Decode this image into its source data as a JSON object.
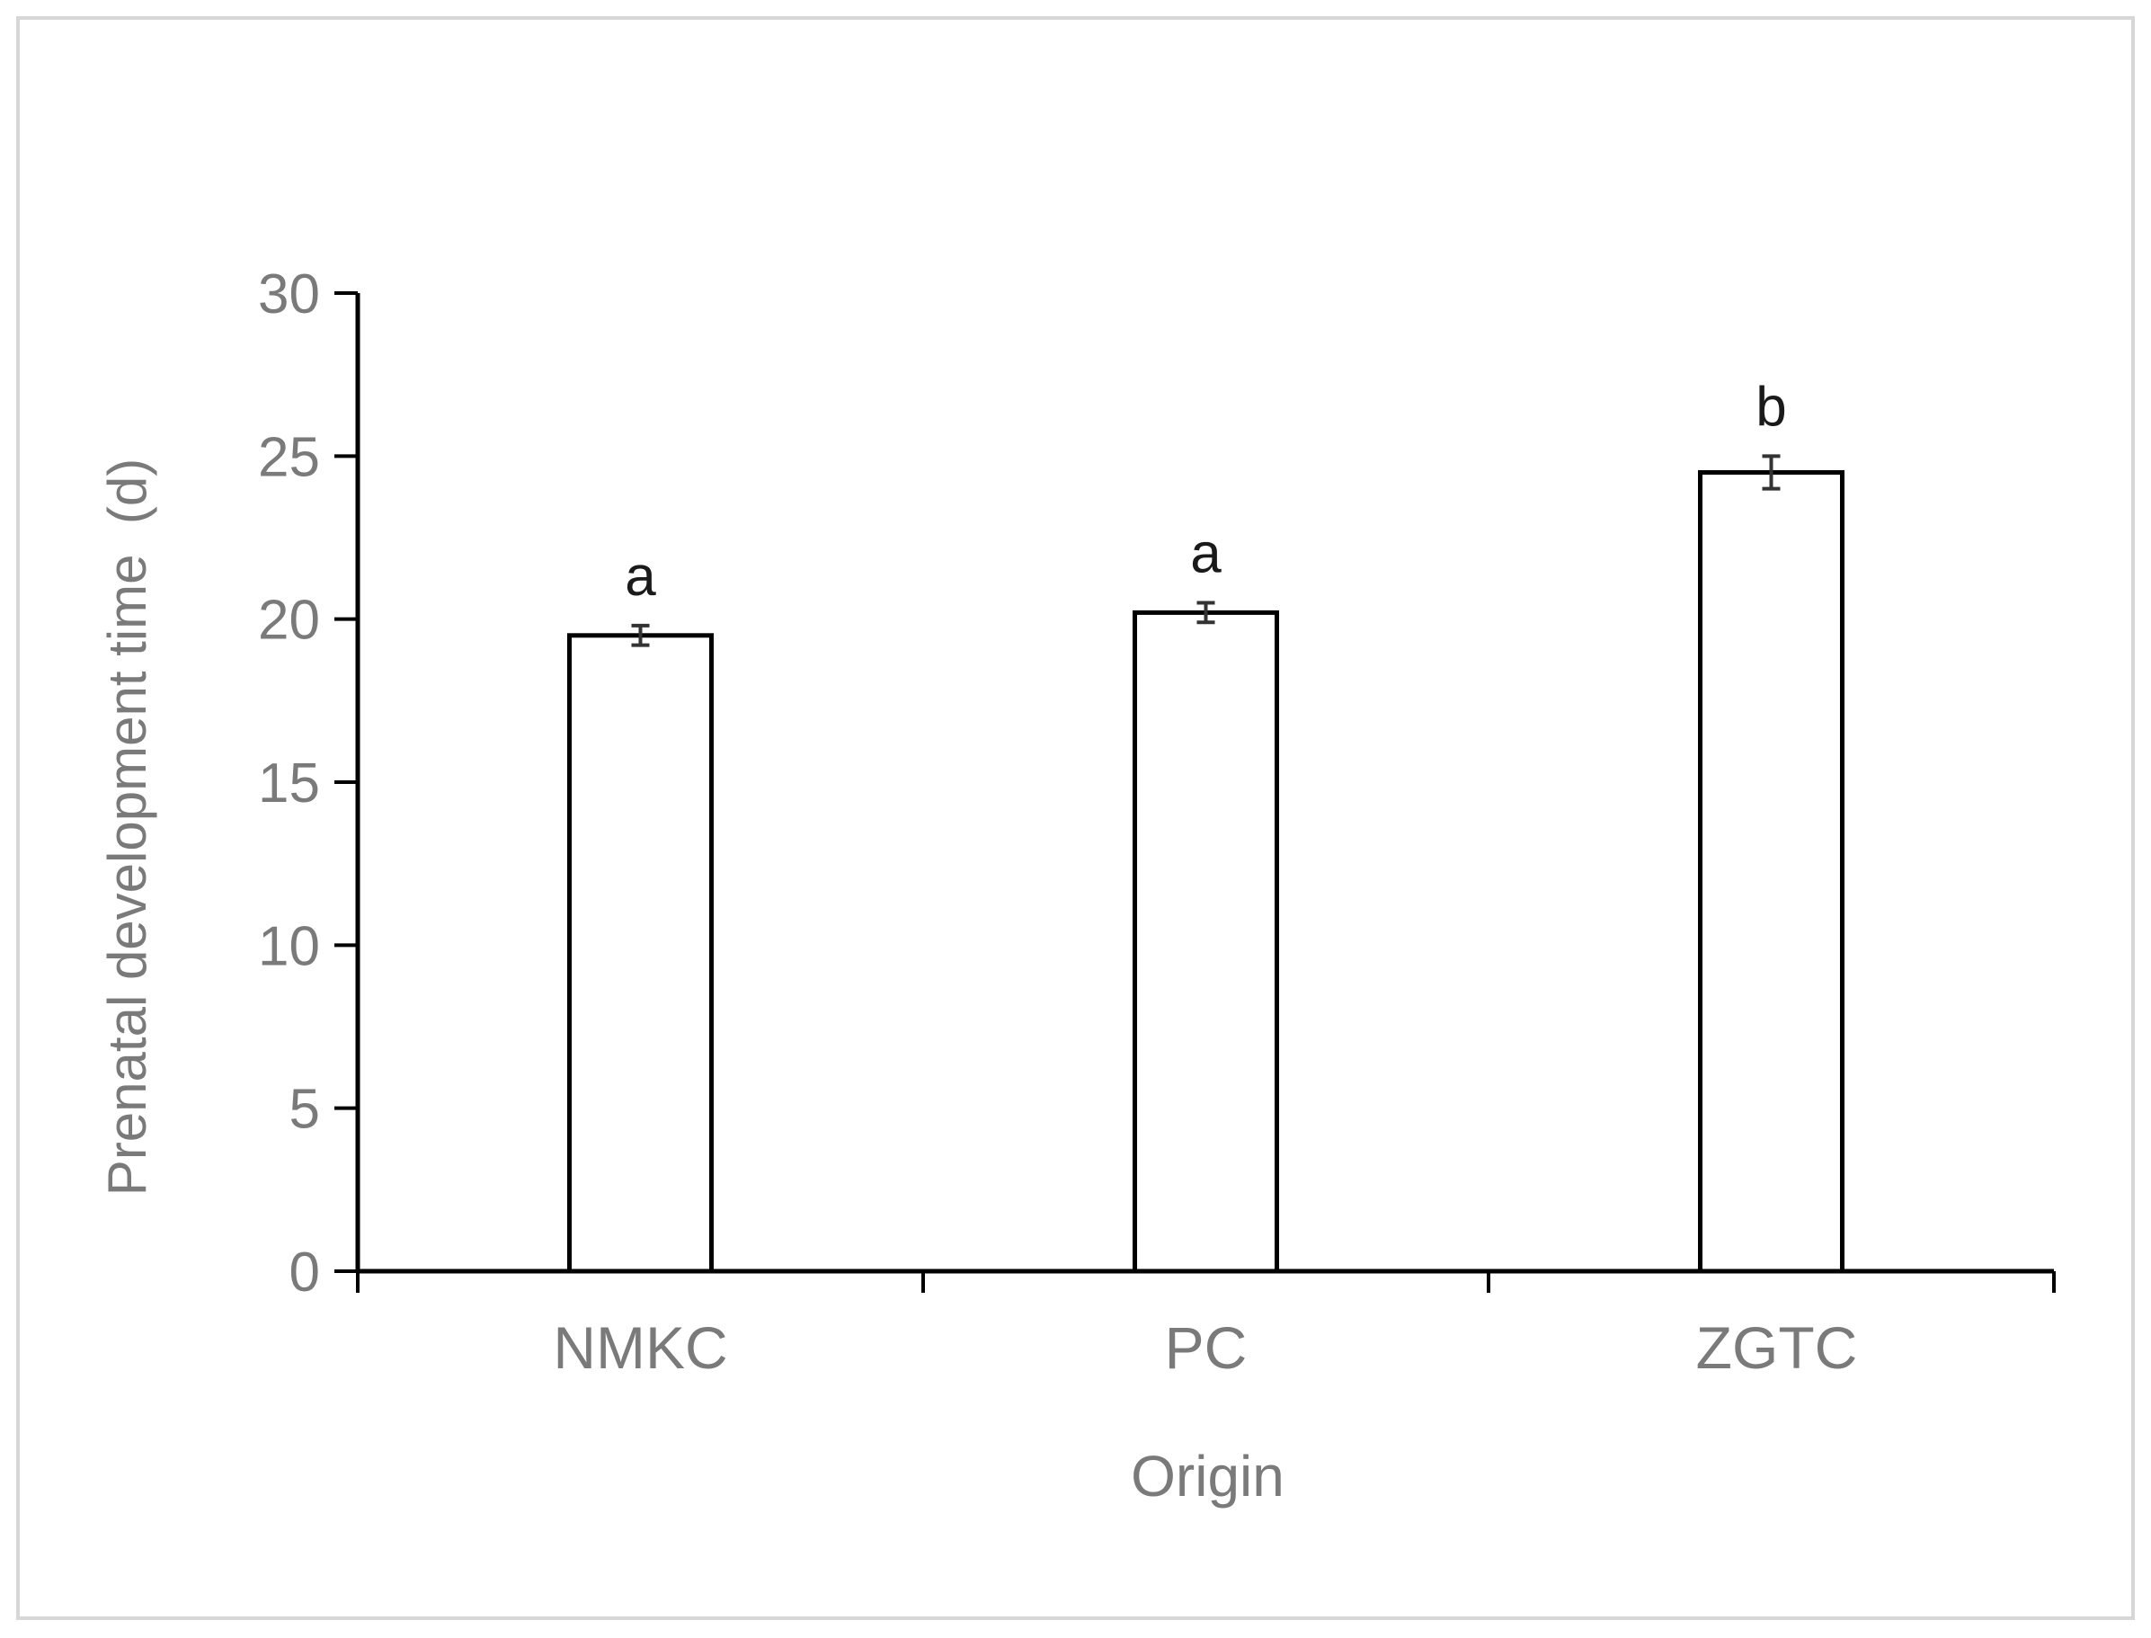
{
  "chart_data": {
    "type": "bar",
    "title": "",
    "xlabel": "Origin",
    "ylabel": "Prenatal development time  (d)",
    "ylim": [
      0,
      30
    ],
    "yticks": [
      0,
      5,
      10,
      15,
      20,
      25,
      30
    ],
    "categories": [
      "NMKC",
      "PC",
      "ZGTC"
    ],
    "values": [
      19.5,
      20.2,
      24.5
    ],
    "errors": [
      0.3,
      0.3,
      0.5
    ],
    "significance_labels": [
      "a",
      "a",
      "b"
    ],
    "grid": false,
    "legend": "none",
    "colors": {
      "bar_fill": "#ffffff",
      "bar_stroke": "#000000",
      "axis": "#000000",
      "text": "#7a7a7a",
      "frame": "#d7d7d7"
    }
  }
}
